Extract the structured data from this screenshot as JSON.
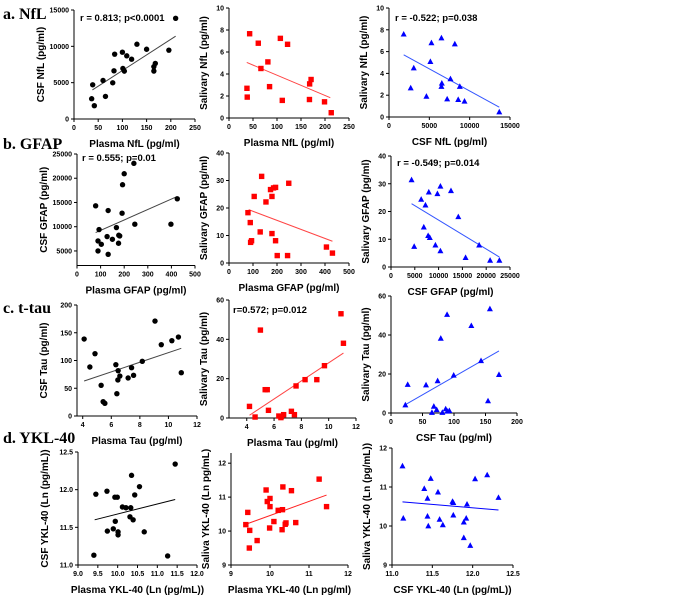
{
  "row_labels": [
    "a. NfL",
    "b. GFAP",
    "c. t-tau",
    "d. YKL-40"
  ],
  "chart_data": [
    {
      "type": "scatter",
      "xlabel": "Plasma NfL (pg/ml)",
      "ylabel": "CSF NfL (pg/ml)",
      "xlim": [
        0,
        250
      ],
      "ylim": [
        0,
        15000
      ],
      "xticks": [
        "0",
        "50",
        "100",
        "150",
        "200",
        "250"
      ],
      "yticks": [
        "0",
        "5000",
        "10000",
        "15000"
      ],
      "annotation": "r = 0.813; p<0.0001",
      "marker": "circle",
      "color": "#000000",
      "fit_color": "#444444",
      "x": [
        38.6,
        36.5,
        42,
        60,
        65,
        80,
        82.6,
        84,
        100,
        101,
        104,
        109,
        119,
        130,
        150,
        165,
        165,
        168,
        196,
        210
      ],
      "y": [
        4710,
        2790,
        1830,
        5300,
        3110,
        4985,
        6630,
        8920,
        9190,
        6950,
        6590,
        8690,
        8230,
        10290,
        9600,
        6600,
        7200,
        7650,
        9470,
        13860
      ],
      "fit": {
        "x": [
          38,
          210
        ],
        "y": [
          4000,
          11400
        ]
      }
    },
    {
      "type": "scatter",
      "xlabel": "Plasma NfL (pg/ml)",
      "ylabel": "Salivary NfL (pg/ml)",
      "xlim": [
        0,
        250
      ],
      "ylim": [
        0,
        10
      ],
      "xticks": [
        "0",
        "50",
        "100",
        "150",
        "200",
        "250"
      ],
      "yticks": [
        "0",
        "2",
        "4",
        "6",
        "8",
        "10"
      ],
      "annotation": "",
      "marker": "square",
      "color": "#ff0000",
      "fit_color": "#ff4444",
      "x": [
        37.4,
        38,
        43,
        61,
        66.5,
        81,
        84.5,
        111,
        107,
        122,
        167.6,
        168,
        171,
        199,
        213
      ],
      "y": [
        2.7,
        1.9,
        7.66,
        6.8,
        4.5,
        5.1,
        2.85,
        1.6,
        7.24,
        6.7,
        1.68,
        3.1,
        3.5,
        1.47,
        0.48
      ],
      "fit": {
        "x": [
          37,
          211
        ],
        "y": [
          5.05,
          1.85
        ]
      }
    },
    {
      "type": "scatter",
      "xlabel": "CSF  NfL (pg/ml)",
      "ylabel": "Salivary NfL (pg/ml)",
      "xlim": [
        0,
        15000
      ],
      "ylim": [
        0,
        10
      ],
      "xticks": [
        "0",
        "5000",
        "10000",
        "15000"
      ],
      "yticks": [
        "0",
        "2",
        "4",
        "6",
        "8",
        "10"
      ],
      "annotation": "r = -0.522; p=0.038",
      "marker": "triangle",
      "color": "#0000ff",
      "fit_color": "#3355ff",
      "x": [
        1820,
        2690,
        3070,
        4640,
        5130,
        5260,
        6500,
        6500,
        6550,
        7210,
        7620,
        8160,
        8780,
        8580,
        9360,
        13670
      ],
      "y": [
        7.6,
        2.66,
        4.5,
        1.9,
        5.08,
        6.8,
        7.25,
        2.8,
        3.1,
        1.65,
        3.5,
        6.7,
        2.8,
        1.6,
        1.45,
        0.46
      ],
      "fit": {
        "x": [
          1820,
          13670
        ],
        "y": [
          5.7,
          0.9
        ]
      }
    },
    {
      "type": "scatter",
      "xlabel": "Plasma GFAP (pg/ml)",
      "ylabel": "CSF GFAP (pg/ml)",
      "xlim": [
        0,
        500
      ],
      "ylim": [
        2000,
        25000
      ],
      "xticks": [
        "0",
        "100",
        "200",
        "300",
        "400",
        "500"
      ],
      "yticks": [
        "5000",
        "10000",
        "15000",
        "20000",
        "25000"
      ],
      "annotation": "r = 0.555; p=0.01",
      "marker": "circle",
      "color": "#000000",
      "fit_color": "#444444",
      "x": [
        79,
        89,
        89,
        93.5,
        103,
        127.5,
        132,
        132,
        150,
        167,
        176,
        177,
        181,
        191,
        193,
        200,
        241,
        245,
        398,
        425
      ],
      "y": [
        14310,
        7070,
        5000,
        9410,
        6380,
        7970,
        13340,
        4310,
        7410,
        9830,
        6590,
        8240,
        8100,
        12790,
        18660,
        20930,
        23070,
        10520,
        10520,
        15760
      ],
      "fit": {
        "x": [
          79,
          425
        ],
        "y": [
          8790,
          16240
        ]
      }
    },
    {
      "type": "scatter",
      "xlabel": "Plasma GFAP (pg/ml)",
      "ylabel": "Salivary GFAP (pg/ml)",
      "xlim": [
        0,
        500
      ],
      "ylim": [
        0,
        40
      ],
      "xticks": [
        "0",
        "100",
        "200",
        "300",
        "400",
        "500"
      ],
      "yticks": [
        "0",
        "10",
        "20",
        "30",
        "40"
      ],
      "annotation": "",
      "marker": "square",
      "color": "#ff0000",
      "fit_color": "#ff4444",
      "x": [
        79,
        88.6,
        90,
        94,
        105,
        130,
        136,
        154,
        173,
        179,
        179,
        185.6,
        194,
        194,
        201,
        244,
        249,
        406,
        431
      ],
      "y": [
        18.3,
        14.7,
        7.5,
        8.1,
        24.2,
        11.3,
        31.5,
        22.2,
        26.7,
        24.2,
        10.7,
        27.3,
        27.5,
        8.1,
        2.7,
        2.7,
        29,
        5.8,
        3.6
      ],
      "fit": {
        "x": [
          82,
          431
        ],
        "y": [
          19.4,
          7.9
        ]
      }
    },
    {
      "type": "scatter",
      "xlabel": "CSF GFAP (pg/ml)",
      "ylabel": "Salivary GFAP (pg/ml)",
      "xlim": [
        0,
        25000
      ],
      "ylim": [
        0,
        40
      ],
      "xticks": [
        "0",
        "5000",
        "10000",
        "15000",
        "20000",
        "25000"
      ],
      "yticks": [
        "0",
        "10",
        "20",
        "30",
        "40"
      ],
      "annotation": "r = -0.549; p=0.014",
      "marker": "triangle",
      "color": "#0000ff",
      "fit_color": "#3355ff",
      "x": [
        4320,
        4870,
        6340,
        6890,
        7240,
        7940,
        7800,
        8150,
        9330,
        9750,
        10380,
        10380,
        12600,
        14140,
        15670,
        18520,
        20820,
        22770
      ],
      "y": [
        31.4,
        7.4,
        24.4,
        14.4,
        22.3,
        27,
        11.3,
        10.6,
        7.9,
        26.4,
        29.1,
        5.8,
        27.5,
        18.1,
        3.4,
        7.9,
        2.4,
        2.4
      ],
      "fit": {
        "x": [
          4320,
          22770
        ],
        "y": [
          22.8,
          3.6
        ]
      }
    },
    {
      "type": "scatter",
      "xlabel": "Plasma Tau (pg/ml)",
      "ylabel": "CSF Tau (pg/ml)",
      "xlim": [
        3.6,
        12
      ],
      "ylim": [
        0,
        200
      ],
      "xticks": [
        "4",
        "6",
        "8",
        "10",
        "12"
      ],
      "yticks": [
        "0",
        "50",
        "100",
        "150",
        "200"
      ],
      "annotation": "",
      "marker": "circle",
      "color": "#000000",
      "fit_color": "#444444",
      "x": [
        4.1,
        4.5,
        4.86,
        5.29,
        5.43,
        5.55,
        6.32,
        6.39,
        6.48,
        6.46,
        6.6,
        7.18,
        7.42,
        7.56,
        8.17,
        9.06,
        9.5,
        10.24,
        10.7,
        10.9
      ],
      "y": [
        138.7,
        88.3,
        112.3,
        55.3,
        25.8,
        22.8,
        92.5,
        40.2,
        81.7,
        64.9,
        72,
        68.5,
        87,
        73.3,
        98.5,
        171,
        128.5,
        135.7,
        142.3,
        78
      ],
      "fit": {
        "x": [
          4.1,
          10.9
        ],
        "y": [
          63,
          122
        ]
      }
    },
    {
      "type": "scatter",
      "xlabel": "Plasma Tau (pg/ml)",
      "ylabel": "Salivary Tau (pg/ml)",
      "xlim": [
        2.7,
        12
      ],
      "ylim": [
        0,
        60
      ],
      "xticks": [
        "4",
        "6",
        "8",
        "10",
        "12"
      ],
      "yticks": [
        "0",
        "20",
        "40",
        "60"
      ],
      "annotation": "r=0.572; p=0.012",
      "marker": "square",
      "color": "#ff0000",
      "fit_color": "#ff4444",
      "x": [
        4.2,
        4.61,
        5.0,
        5.35,
        5.5,
        5.59,
        6.35,
        6.5,
        6.54,
        6.7,
        7.27,
        7.49,
        7.61,
        8.27,
        9.13,
        9.69,
        10.9,
        11.08
      ],
      "y": [
        5.9,
        0.5,
        44.7,
        14.4,
        14.4,
        3.9,
        1.0,
        0.2,
        0.8,
        1.7,
        3.4,
        1.7,
        16.3,
        19.5,
        19.5,
        26.6,
        53,
        38
      ],
      "fit": {
        "x": [
          4.2,
          11.08
        ],
        "y": [
          1.4,
          33
        ]
      }
    },
    {
      "type": "scatter",
      "xlabel": "CSF Tau (pg/ml)",
      "ylabel": "Salivary Tau (pg/ml)",
      "xlim": [
        0,
        200
      ],
      "ylim": [
        0,
        60
      ],
      "xticks": [
        "0",
        "50",
        "100",
        "150",
        "200"
      ],
      "yticks": [
        "0",
        "20",
        "40",
        "60"
      ],
      "annotation": "",
      "marker": "triangle",
      "color": "#0000ff",
      "fit_color": "#3355ff",
      "x": [
        22.8,
        26.5,
        55.6,
        65,
        68,
        72.5,
        74,
        79,
        81.5,
        86.8,
        89,
        89.4,
        92.6,
        99.5,
        127.5,
        142.9,
        154,
        157,
        171.4
      ],
      "y": [
        4.1,
        14.6,
        14.4,
        0.3,
        3.4,
        1.7,
        16.5,
        38.3,
        0.3,
        2.1,
        50.5,
        0.9,
        1.2,
        19.4,
        44.8,
        26.8,
        6.2,
        53.4,
        19.7
      ],
      "fit": {
        "x": [
          21.7,
          171.4
        ],
        "y": [
          4.1,
          31.8
        ]
      }
    },
    {
      "type": "scatter",
      "xlabel": "Plasma YKL-40 (Ln (pg/mL))",
      "ylabel": "CSF YKL-40 (Ln (pg/mL))",
      "xlim": [
        9,
        12
      ],
      "ylim": [
        11,
        12.5
      ],
      "xticks": [
        "9.0",
        "9.5",
        "10.0",
        "10.5",
        "11.0",
        "11.5",
        "12.0"
      ],
      "yticks": [
        "11.0",
        "11.5",
        "12.0",
        "12.5"
      ],
      "annotation": "",
      "marker": "circle",
      "color": "#000000",
      "fit_color": "#000000",
      "x": [
        9.4,
        9.45,
        9.73,
        9.74,
        9.89,
        9.93,
        9.94,
        9.99,
        10.01,
        10.01,
        10.12,
        10.21,
        10.33,
        10.31,
        10.35,
        10.39,
        10.43,
        10.55,
        10.67,
        11.26,
        11.45
      ],
      "y": [
        11.13,
        11.94,
        11.98,
        11.45,
        11.48,
        11.9,
        11.58,
        11.9,
        11.44,
        11.4,
        11.77,
        11.76,
        11.76,
        11.64,
        12.19,
        11.6,
        11.93,
        12.04,
        11.44,
        11.12,
        12.34
      ],
      "fit": {
        "x": [
          9.42,
          11.45
        ],
        "y": [
          11.6,
          11.87
        ]
      }
    },
    {
      "type": "scatter",
      "xlabel": "Plasma YKL-40 (Ln pg/ml)",
      "ylabel": "Saliva YKL-40 (Ln pg/mL)",
      "xlim": [
        9,
        12
      ],
      "ylim": [
        9,
        12.3
      ],
      "xticks": [
        "9",
        "10",
        "11",
        "12"
      ],
      "yticks": [
        "9",
        "10",
        "11",
        "12"
      ],
      "annotation": "",
      "marker": "square",
      "color": "#ff0000",
      "fit_color": "#ff2222",
      "x": [
        9.38,
        9.43,
        9.48,
        9.47,
        9.67,
        9.9,
        9.93,
        10.0,
        10.0,
        9.99,
        10.1,
        10.21,
        10.32,
        10.31,
        10.33,
        10.39,
        10.41,
        10.55,
        10.66,
        11.26,
        11.45
      ],
      "y": [
        10.19,
        10.55,
        10.02,
        9.5,
        9.72,
        11.21,
        10.87,
        10.96,
        10.72,
        10.09,
        10.28,
        10.61,
        10.63,
        10.04,
        11.3,
        10.2,
        10.24,
        11.19,
        10.25,
        11.53,
        10.72
      ],
      "fit": {
        "x": [
          9.38,
          11.45
        ],
        "y": [
          10.2,
          11.06
        ]
      }
    },
    {
      "type": "scatter",
      "xlabel": "CSF YKL-40 (Ln (pg/mL))",
      "ylabel": "Saliva YKL-40 (Ln (pg/mL))",
      "xlim": [
        11,
        12.5
      ],
      "ylim": [
        9,
        12
      ],
      "xticks": [
        "11.0",
        "11.5",
        "12.0",
        "12.5"
      ],
      "yticks": [
        "9",
        "10",
        "11",
        "12"
      ],
      "annotation": "",
      "marker": "triangle",
      "color": "#0000ff",
      "fit_color": "#0000ff",
      "x": [
        11.13,
        11.14,
        11.4,
        11.44,
        11.44,
        11.45,
        11.48,
        11.57,
        11.59,
        11.63,
        11.75,
        11.76,
        11.76,
        11.89,
        11.89,
        11.92,
        11.93,
        11.97,
        12.03,
        12.18,
        12.32
      ],
      "y": [
        11.54,
        10.2,
        10.96,
        10.71,
        10.25,
        10.0,
        11.22,
        10.87,
        10.17,
        10.03,
        10.63,
        10.28,
        10.6,
        10.1,
        9.7,
        10.2,
        10.56,
        9.5,
        11.21,
        11.31,
        10.73
      ],
      "fit": {
        "x": [
          11.13,
          12.32
        ],
        "y": [
          10.62,
          10.41
        ]
      }
    }
  ]
}
